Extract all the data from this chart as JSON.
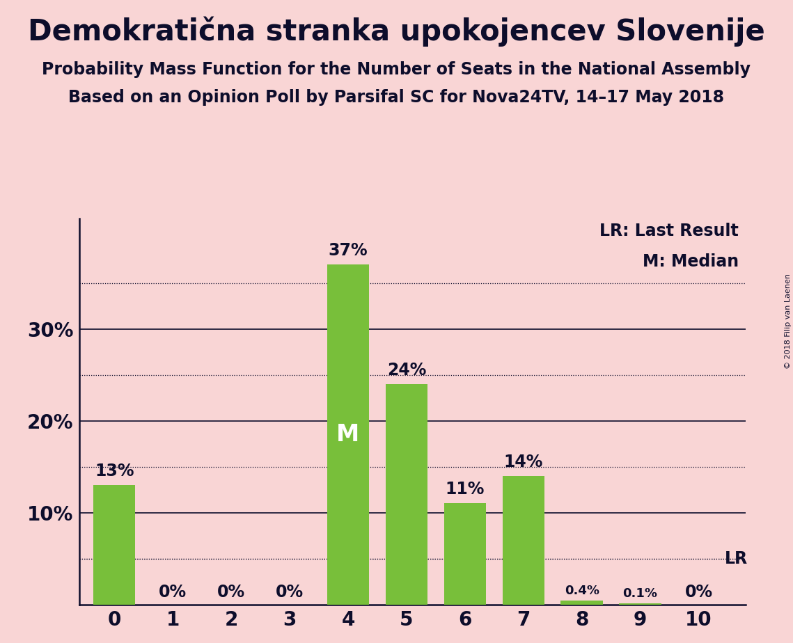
{
  "title": "Demokratična stranka upokojencev Slovenije",
  "subtitle1": "Probability Mass Function for the Number of Seats in the National Assembly",
  "subtitle2": "Based on an Opinion Poll by Parsifal SC for Nova24TV, 14–17 May 2018",
  "copyright": "© 2018 Filip van Laenen",
  "categories": [
    0,
    1,
    2,
    3,
    4,
    5,
    6,
    7,
    8,
    9,
    10
  ],
  "values": [
    13,
    0,
    0,
    0,
    37,
    24,
    11,
    14,
    0.4,
    0.1,
    0
  ],
  "labels": [
    "13%",
    "0%",
    "0%",
    "0%",
    "37%",
    "24%",
    "11%",
    "14%",
    "0.4%",
    "0.1%",
    "0%"
  ],
  "label_fontsize_large": 17,
  "label_fontsize_small": 13,
  "bar_color": "#78bf3a",
  "background_color": "#f9d5d5",
  "text_color": "#0d0d2b",
  "median_bar_idx": 4,
  "median_label": "M",
  "median_label_color": "#ffffff",
  "median_label_fontsize": 24,
  "lr_level": 5.0,
  "lr_label": "LR",
  "legend_lr": "LR: Last Result",
  "legend_m": "M: Median",
  "yticks_major": [
    10,
    20,
    30
  ],
  "yticks_minor_dotted": [
    5,
    15,
    25,
    35
  ],
  "ylim": [
    0,
    42
  ],
  "title_fontsize": 30,
  "subtitle_fontsize": 17,
  "tick_fontsize": 20,
  "legend_fontsize": 17,
  "lr_label_fontsize": 17
}
